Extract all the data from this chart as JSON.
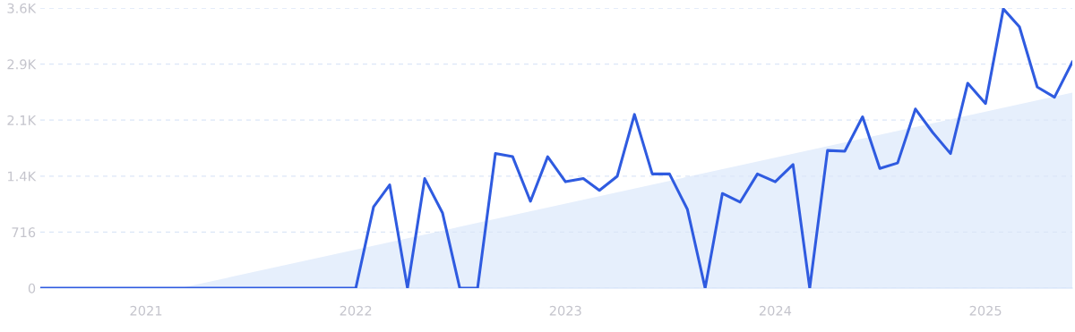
{
  "chart_data": {
    "type": "line",
    "x": [
      "2020-07",
      "2020-08",
      "2020-09",
      "2020-10",
      "2020-11",
      "2020-12",
      "2021-01",
      "2021-02",
      "2021-03",
      "2021-04",
      "2021-05",
      "2021-06",
      "2021-07",
      "2021-08",
      "2021-09",
      "2021-10",
      "2021-11",
      "2021-12",
      "2022-01",
      "2022-02",
      "2022-03",
      "2022-04",
      "2022-05",
      "2022-06",
      "2022-07",
      "2022-08",
      "2022-09",
      "2022-10",
      "2022-11",
      "2022-12",
      "2023-01",
      "2023-02",
      "2023-03",
      "2023-04",
      "2023-05",
      "2023-06",
      "2023-07",
      "2023-08",
      "2023-09",
      "2023-10",
      "2023-11",
      "2023-12",
      "2024-01",
      "2024-02",
      "2024-03",
      "2024-04",
      "2024-05",
      "2024-06",
      "2024-07",
      "2024-08",
      "2024-09",
      "2024-10",
      "2024-11",
      "2024-12",
      "2025-01",
      "2025-02",
      "2025-03",
      "2025-04",
      "2025-05",
      "2025-06"
    ],
    "series": [
      {
        "type": "area",
        "color": "#e6effc",
        "x": [
          "2021-03",
          "2025-06"
        ],
        "values": [
          0,
          2500
        ]
      },
      {
        "color": "#2f5be0",
        "values": [
          0,
          0,
          0,
          0,
          0,
          0,
          0,
          0,
          0,
          0,
          0,
          0,
          0,
          0,
          0,
          0,
          0,
          0,
          0,
          1040,
          1320,
          0,
          1400,
          960,
          0,
          0,
          1720,
          1680,
          1110,
          1680,
          1360,
          1400,
          1250,
          1430,
          2220,
          1460,
          1460,
          1010,
          0,
          1210,
          1100,
          1460,
          1360,
          1580,
          0,
          1760,
          1750,
          2190,
          1530,
          1600,
          2290,
          1990,
          1720,
          2620,
          2360,
          3570,
          3340,
          2570,
          2440,
          2890
        ]
      }
    ],
    "xlim": [
      "2020-07",
      "2025-06"
    ],
    "xticks": [
      {
        "value": "2021-01",
        "label": "2021"
      },
      {
        "value": "2022-01",
        "label": "2022"
      },
      {
        "value": "2023-01",
        "label": "2023"
      },
      {
        "value": "2024-01",
        "label": "2024"
      },
      {
        "value": "2025-01",
        "label": "2025"
      }
    ],
    "ylim": [
      0,
      3580
    ],
    "yticks": [
      0,
      716,
      {
        "value": 1432,
        "label": "1.4K"
      },
      {
        "value": 2148,
        "label": "2.1K"
      },
      {
        "value": 2864,
        "label": "2.9K"
      },
      {
        "value": 3580,
        "label": "3.6K"
      }
    ],
    "grid": "y"
  }
}
